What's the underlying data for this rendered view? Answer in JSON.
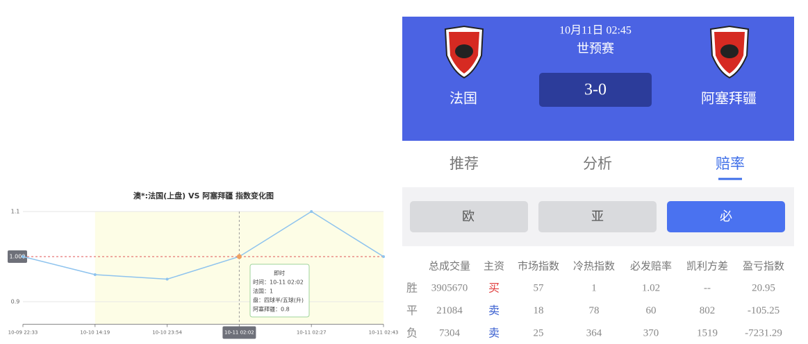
{
  "chart_data": {
    "type": "line",
    "title": "澳*:法国(上盘) VS 阿塞拜疆 指数变化图",
    "categories": [
      "10-09 22:33",
      "10-10 14:19",
      "10-10 23:54",
      "10-11 02:02",
      "10-11 02:27",
      "10-11 02:43"
    ],
    "series": [
      {
        "name": "法国",
        "color": "#8ec3ee",
        "values": [
          1.0,
          0.96,
          0.95,
          1.0,
          1.1,
          1.0
        ]
      }
    ],
    "ylim": [
      0.85,
      1.1
    ],
    "yticks": [
      0.9,
      1.1
    ],
    "grid": true,
    "pointer_y": {
      "value": 1,
      "label": "1.000"
    },
    "tooltip": [
      "即时",
      "时间：10-11 02:02",
      "法国：1",
      "盘：四球半/五球(升)",
      "阿塞拜疆：0.8"
    ]
  },
  "match": {
    "datetime": "10月11日 02:45",
    "competition": "世预赛",
    "score": "3-0",
    "home": "法国",
    "away": "阿塞拜疆"
  },
  "tabs": [
    "推荐",
    "分析",
    "赔率"
  ],
  "odds_types": [
    "欧",
    "亚",
    "必"
  ],
  "table": {
    "header": [
      "总成交量",
      "主资",
      "市场指数",
      "冷热指数",
      "必发赔率",
      "凯利方差",
      "盈亏指数"
    ],
    "rows": [
      [
        "胜",
        "3905670",
        "买",
        "57",
        "1",
        "1.02",
        "--",
        "20.95"
      ],
      [
        "平",
        "21084",
        "卖",
        "18",
        "78",
        "60",
        "802",
        "-105.25"
      ],
      [
        "负",
        "7304",
        "卖",
        "25",
        "364",
        "370",
        "1519",
        "-7231.29"
      ]
    ]
  }
}
